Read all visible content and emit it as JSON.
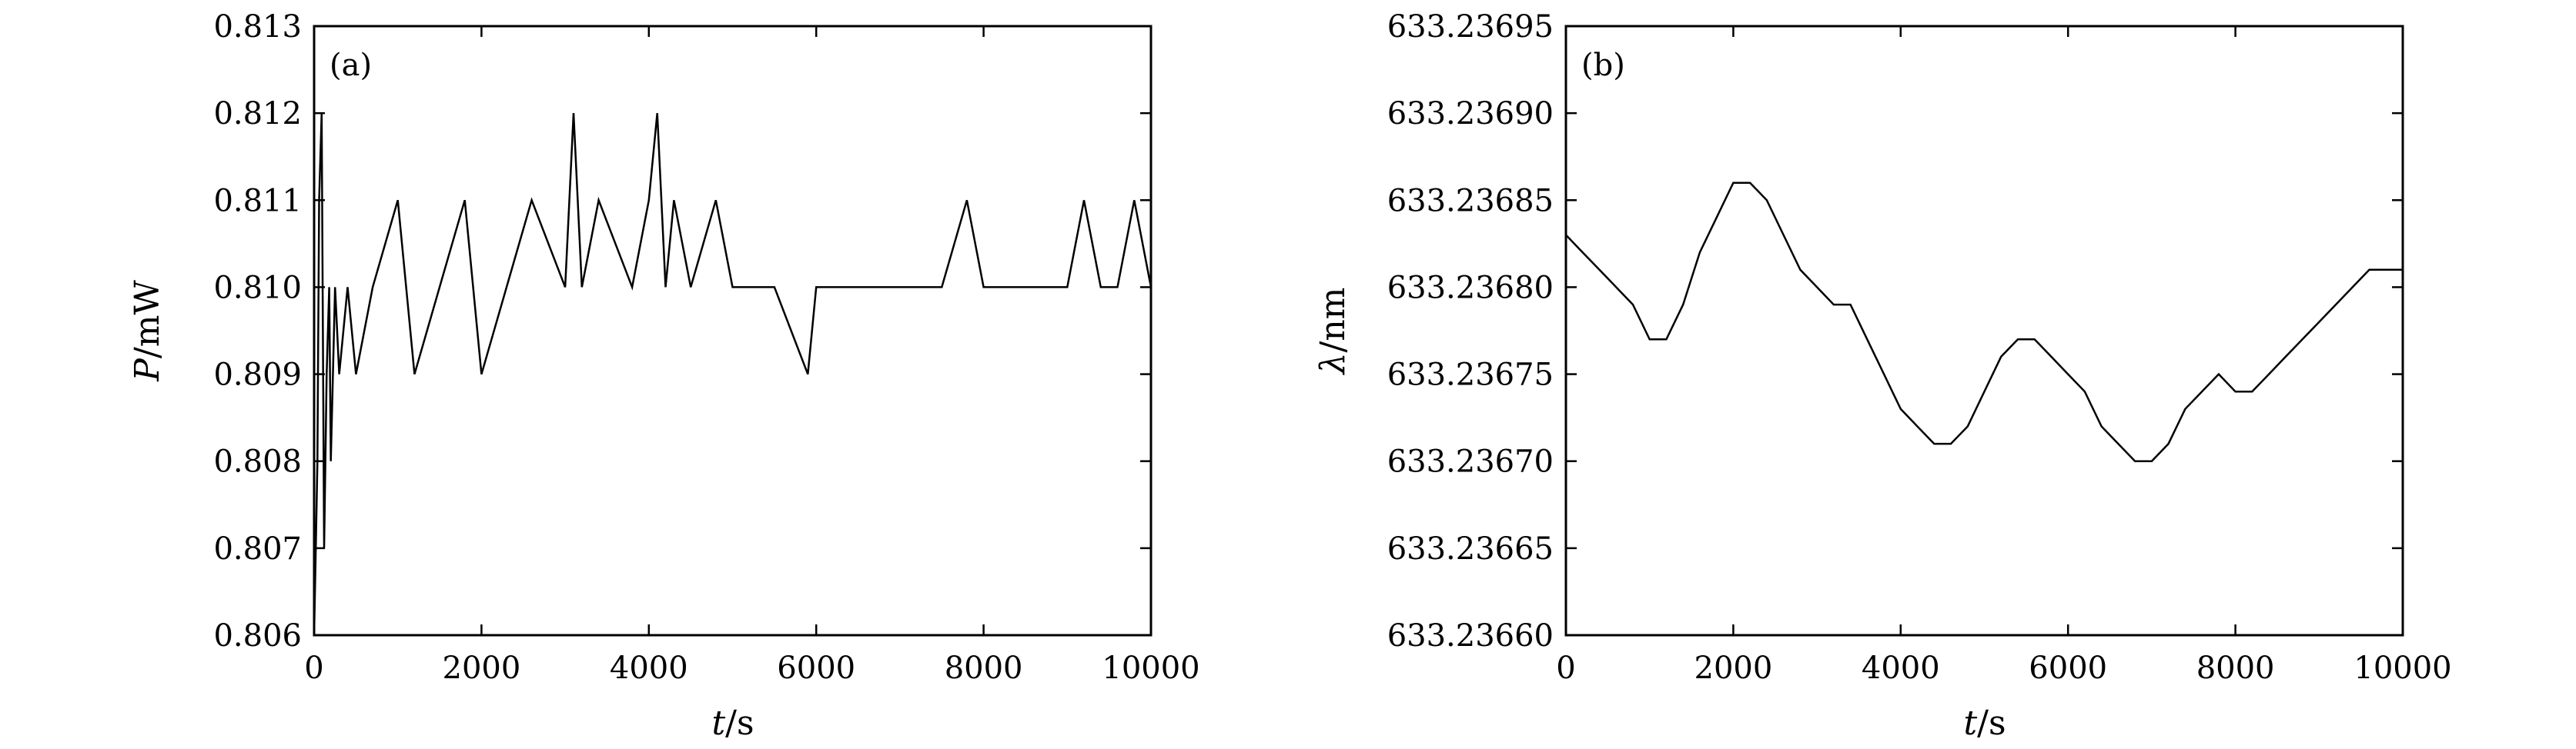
{
  "chart_data": [
    {
      "type": "line",
      "panel_label": "(a)",
      "xlabel_var": "t",
      "xlabel_unit": "/s",
      "ylabel_var": "P",
      "ylabel_unit": "/mW",
      "xlim": [
        0,
        10000
      ],
      "ylim": [
        0.806,
        0.813
      ],
      "xticks": [
        0,
        2000,
        4000,
        6000,
        8000,
        10000
      ],
      "yticks": [
        0.806,
        0.807,
        0.808,
        0.809,
        0.81,
        0.811,
        0.812,
        0.813
      ],
      "ytick_labels": [
        "0.806",
        "0.807",
        "0.808",
        "0.809",
        "0.810",
        "0.811",
        "0.812",
        "0.813"
      ],
      "grid": false,
      "series_description": "power readings quantized to 0.001 mW steps, mostly between 0.808 and 0.812, occasionally 0.813; starts at 0.806 and 0.807 near t=0",
      "series": [
        {
          "color": "#000000",
          "x": [
            0,
            20,
            40,
            60,
            90,
            120,
            150,
            180,
            200,
            250,
            300,
            400,
            500,
            700,
            1000,
            1200,
            1500,
            1800,
            2000,
            2300,
            2600,
            3000,
            3100,
            3200,
            3400,
            3800,
            4000,
            4100,
            4200,
            4300,
            4500,
            4800,
            5000,
            5500,
            5900,
            6000,
            6500,
            7000,
            7500,
            7800,
            8000,
            8500,
            9000,
            9200,
            9400,
            9600,
            9800,
            10000
          ],
          "y": [
            0.806,
            0.807,
            0.808,
            0.811,
            0.812,
            0.807,
            0.809,
            0.81,
            0.808,
            0.81,
            0.809,
            0.81,
            0.809,
            0.81,
            0.811,
            0.809,
            0.81,
            0.811,
            0.809,
            0.81,
            0.811,
            0.81,
            0.812,
            0.81,
            0.811,
            0.81,
            0.811,
            0.812,
            0.81,
            0.811,
            0.81,
            0.811,
            0.81,
            0.81,
            0.809,
            0.81,
            0.81,
            0.81,
            0.81,
            0.811,
            0.81,
            0.81,
            0.81,
            0.811,
            0.81,
            0.81,
            0.811,
            0.81
          ]
        }
      ]
    },
    {
      "type": "line",
      "panel_label": "(b)",
      "xlabel_var": "t",
      "xlabel_unit": "/s",
      "ylabel_var": "λ",
      "ylabel_unit": "/nm",
      "xlim": [
        0,
        10000
      ],
      "ylim": [
        633.2366,
        633.23695
      ],
      "xticks": [
        0,
        2000,
        4000,
        6000,
        8000,
        10000
      ],
      "yticks": [
        633.2366,
        633.23665,
        633.2367,
        633.23675,
        633.2368,
        633.23685,
        633.2369,
        633.23695
      ],
      "ytick_labels": [
        "633.23660",
        "633.23665",
        "633.23670",
        "633.23675",
        "633.23680",
        "633.23685",
        "633.23690",
        "633.23695"
      ],
      "grid": false,
      "series": [
        {
          "color": "#000000",
          "x": [
            0,
            200,
            400,
            600,
            800,
            1000,
            1200,
            1400,
            1600,
            1800,
            2000,
            2200,
            2400,
            2600,
            2800,
            3000,
            3200,
            3400,
            3600,
            3800,
            4000,
            4200,
            4400,
            4600,
            4800,
            5000,
            5200,
            5400,
            5600,
            5800,
            6000,
            6200,
            6400,
            6600,
            6800,
            7000,
            7200,
            7400,
            7600,
            7800,
            8000,
            8200,
            8400,
            8600,
            8800,
            9000,
            9200,
            9400,
            9600,
            9800,
            10000
          ],
          "y": [
            633.23683,
            633.23682,
            633.23681,
            633.2368,
            633.23679,
            633.23677,
            633.23677,
            633.23679,
            633.23682,
            633.23684,
            633.23686,
            633.23686,
            633.23685,
            633.23683,
            633.23681,
            633.2368,
            633.23679,
            633.23679,
            633.23677,
            633.23675,
            633.23673,
            633.23672,
            633.23671,
            633.23671,
            633.23672,
            633.23674,
            633.23676,
            633.23677,
            633.23677,
            633.23676,
            633.23675,
            633.23674,
            633.23672,
            633.23671,
            633.2367,
            633.2367,
            633.23671,
            633.23673,
            633.23674,
            633.23675,
            633.23674,
            633.23674,
            633.23675,
            633.23676,
            633.23677,
            633.23678,
            633.23679,
            633.2368,
            633.23681,
            633.23681,
            633.23681
          ]
        }
      ]
    }
  ]
}
